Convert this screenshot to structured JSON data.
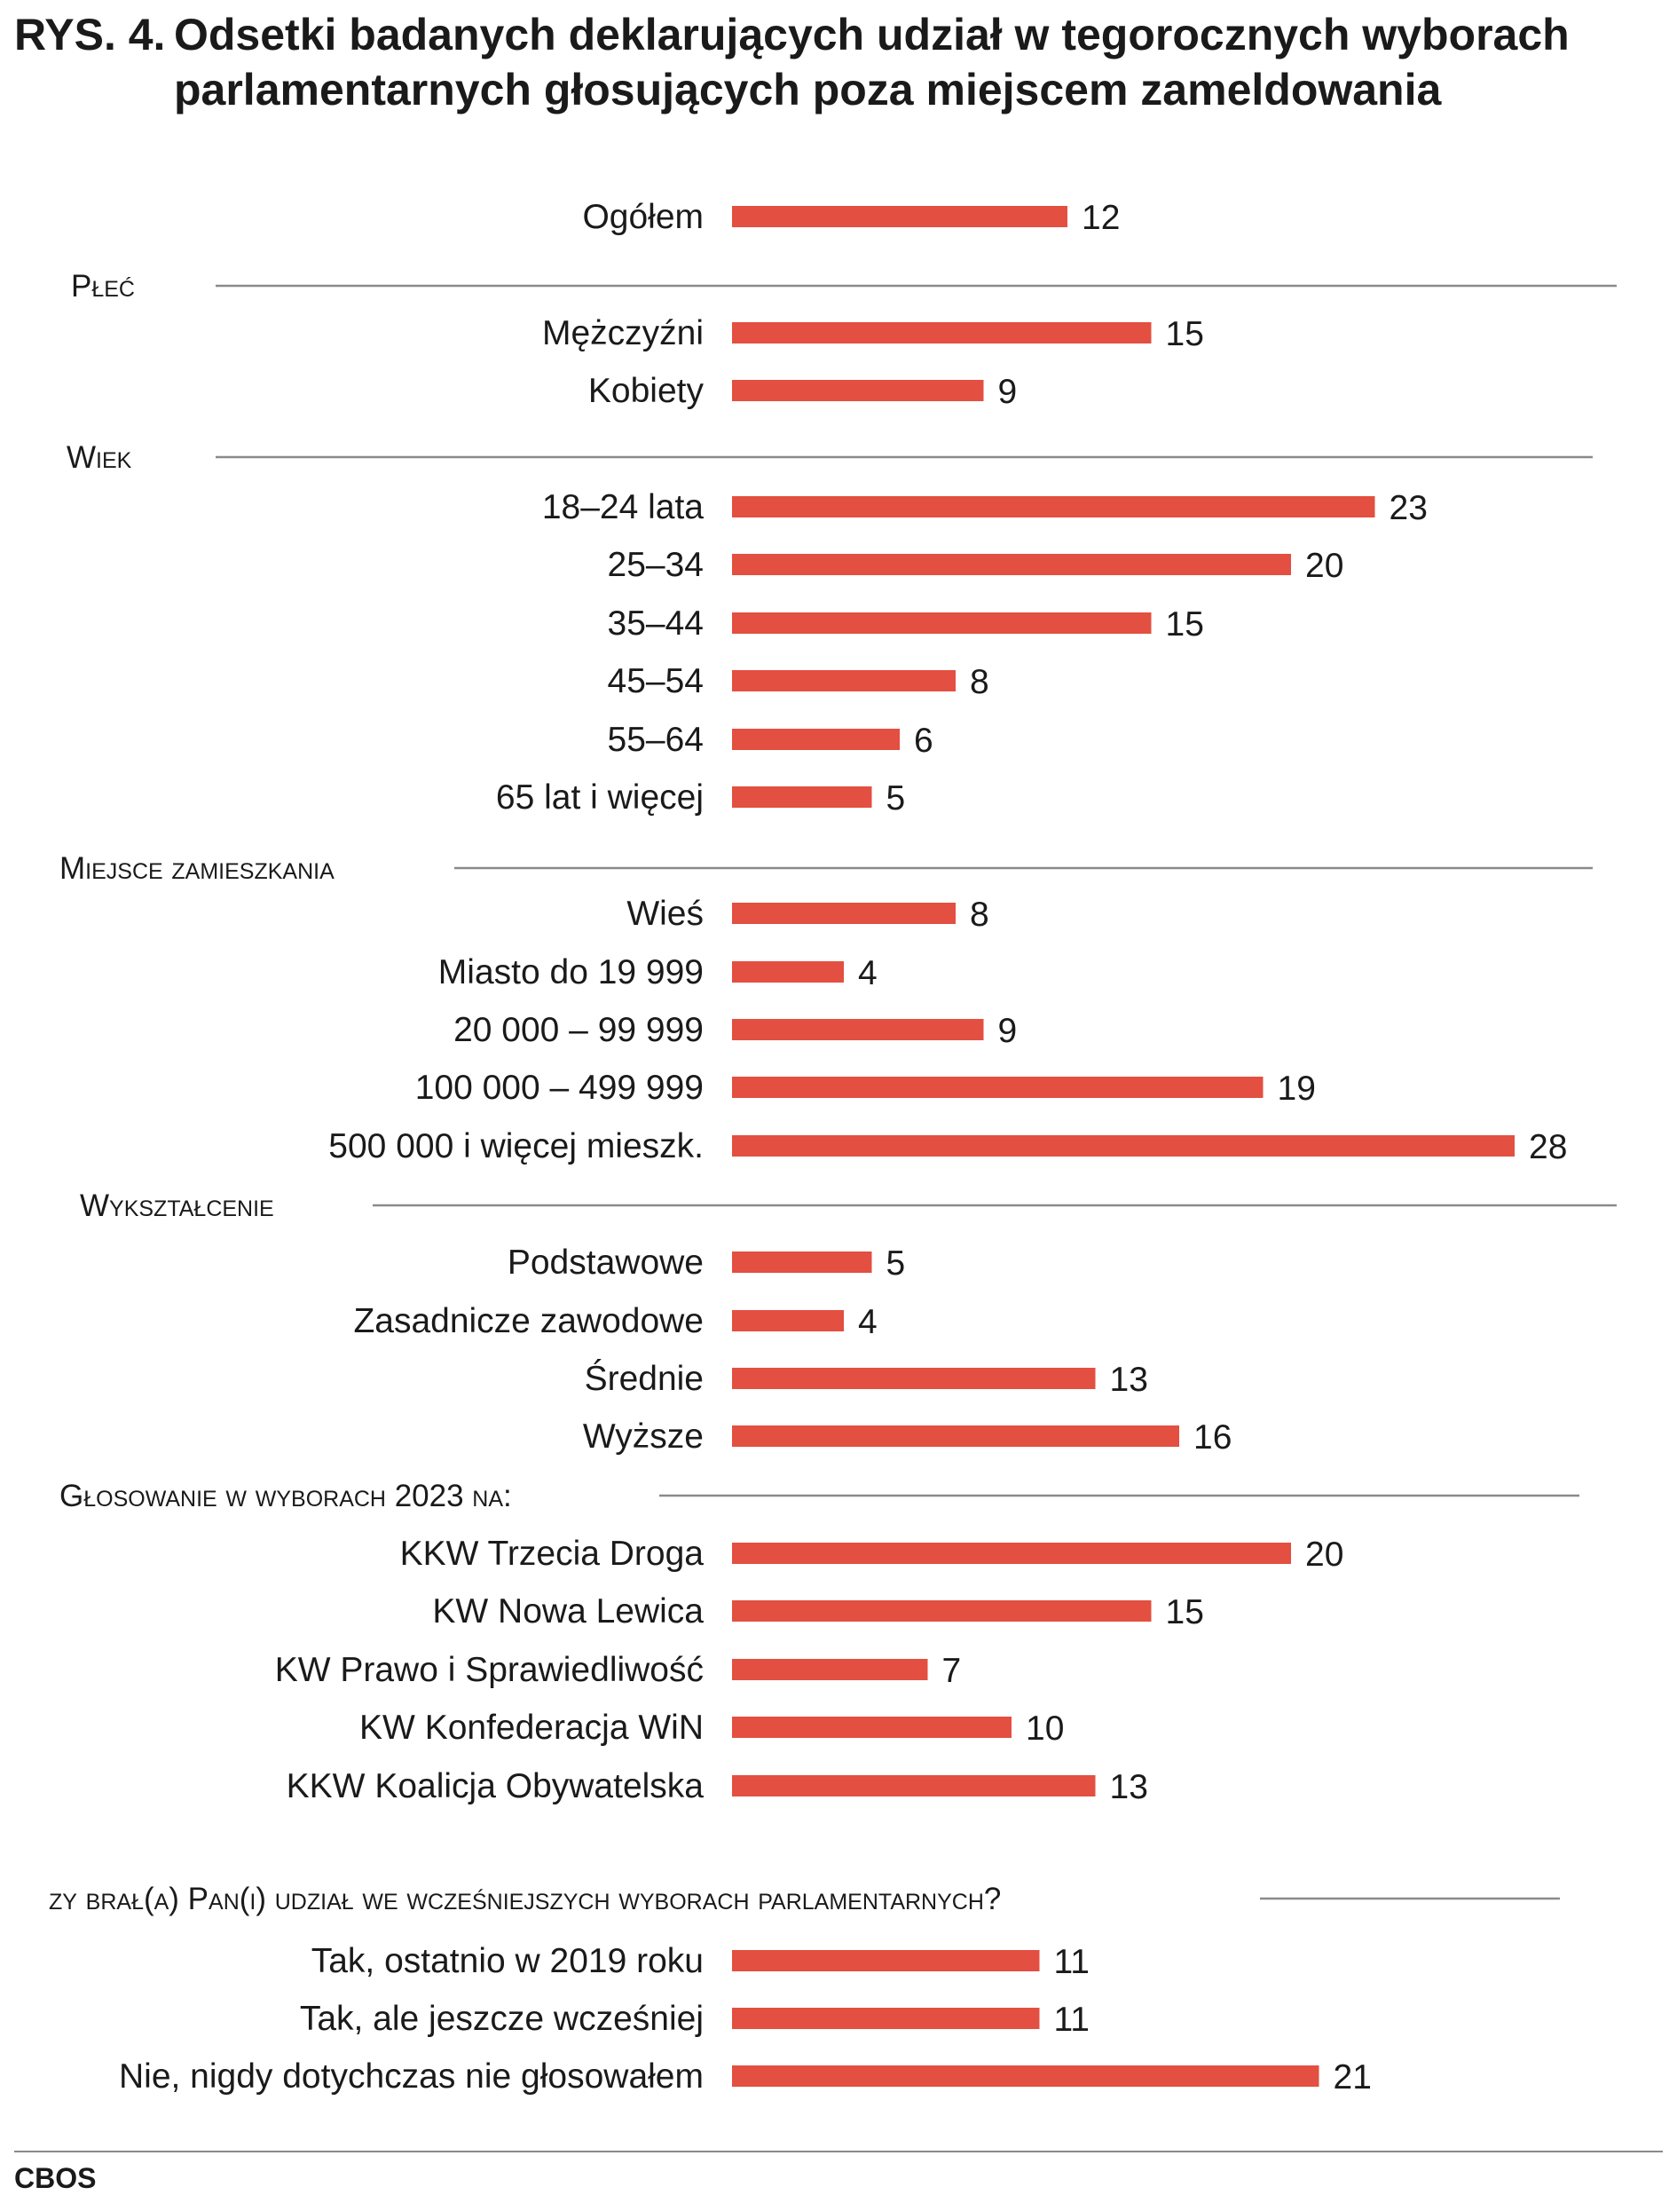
{
  "figure": {
    "number": "RYS. 4.",
    "title_line1": "Odsetki badanych deklarujących udział w tegorocznych wyborach",
    "title_line2": "parlamentarnych głosujących poza miejscem zameldowania",
    "source": "CBOS"
  },
  "chart_data": {
    "type": "bar",
    "orientation": "horizontal",
    "title": "Odsetki badanych deklarujących udział w tegorocznych wyborach parlamentarnych głosujących poza miejscem zameldowania",
    "unit": "%",
    "color": "#e34f40",
    "axes_shown": false,
    "groups": [
      {
        "section": "",
        "items": [
          {
            "label": "Ogółem",
            "value": 12
          }
        ]
      },
      {
        "section": "Płeć",
        "items": [
          {
            "label": "Mężczyźni",
            "value": 15
          },
          {
            "label": "Kobiety",
            "value": 9
          }
        ]
      },
      {
        "section": "Wiek",
        "items": [
          {
            "label": "18–24 lata",
            "value": 23
          },
          {
            "label": "25–34",
            "value": 20
          },
          {
            "label": "35–44",
            "value": 15
          },
          {
            "label": "45–54",
            "value": 8
          },
          {
            "label": "55–64",
            "value": 6
          },
          {
            "label": "65 lat i więcej",
            "value": 5
          }
        ]
      },
      {
        "section": "Miejsce zamieszkania",
        "items": [
          {
            "label": "Wieś",
            "value": 8
          },
          {
            "label": "Miasto do 19 999",
            "value": 4
          },
          {
            "label": "20 000 – 99 999",
            "value": 9
          },
          {
            "label": "100 000 – 499 999",
            "value": 19
          },
          {
            "label": "500 000 i więcej mieszk.",
            "value": 28
          }
        ]
      },
      {
        "section": "Wykształcenie",
        "items": [
          {
            "label": "Podstawowe",
            "value": 5
          },
          {
            "label": "Zasadnicze zawodowe",
            "value": 4
          },
          {
            "label": "Średnie",
            "value": 13
          },
          {
            "label": "Wyższe",
            "value": 16
          }
        ]
      },
      {
        "section": "Głosowanie w wyborach 2023 na:",
        "items": [
          {
            "label": "KKW Trzecia Droga",
            "value": 20
          },
          {
            "label": "KW Nowa Lewica",
            "value": 15
          },
          {
            "label": "KW Prawo i Sprawiedliwość",
            "value": 7
          },
          {
            "label": "KW Konfederacja WiN",
            "value": 10
          },
          {
            "label": "KKW Koalicja Obywatelska",
            "value": 13
          }
        ]
      },
      {
        "section": "zy brał(a) Pan(i) udział we wcześniejszych wyborach parlamentarnych?",
        "items": [
          {
            "label": "Tak, ostatnio w 2019 roku",
            "value": 11
          },
          {
            "label": "Tak, ale jeszcze wcześniej",
            "value": 11
          },
          {
            "label": "Nie, nigdy dotychczas nie głosowałem",
            "value": 21
          }
        ]
      }
    ]
  }
}
